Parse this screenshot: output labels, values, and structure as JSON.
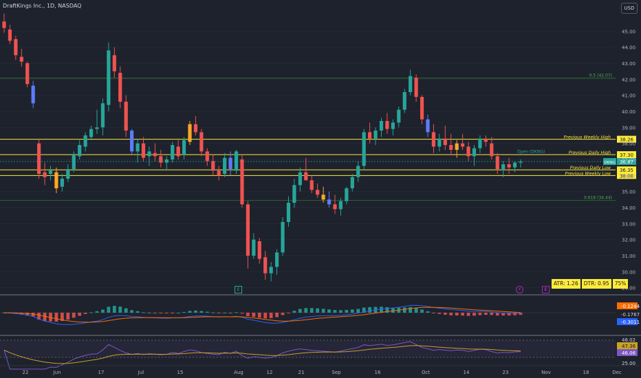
{
  "header": {
    "title": "DraftKings Inc., 1D, NASDAQ",
    "currency_button": "USD"
  },
  "colors": {
    "bg": "#1e222d",
    "up": "#26a69a",
    "down": "#ef5350",
    "level": "#ffeb3b",
    "fib": "#2e7d32",
    "macd_line": "#2962ff",
    "signal_line": "#ff6d00",
    "rsi": "#7e57c2",
    "rsi_ma": "#c9a227"
  },
  "chart_data": {
    "type": "candlestick",
    "price_axis": {
      "ticks": [
        "45.00",
        "44.00",
        "43.00",
        "42.00",
        "41.00",
        "40.00",
        "39.00",
        "38.00",
        "37.00",
        "36.00",
        "35.00",
        "34.00",
        "33.00",
        "32.00",
        "31.00",
        "30.00",
        "29.00"
      ],
      "ylim": [
        28.6,
        46.0
      ]
    },
    "time_axis": {
      "ticks": [
        "22",
        "Jun",
        "17",
        "Jul",
        "15",
        "Aug",
        "12",
        "21",
        "Sep",
        "16",
        "Oct",
        "14",
        "23",
        "Nov",
        "18",
        "Dec"
      ]
    },
    "levels": [
      {
        "label": "Previous Weekly High",
        "value": 38.26,
        "badge": "38.26"
      },
      {
        "label": "Previous Daily High",
        "value": 37.3,
        "badge": "37.30"
      },
      {
        "label": "Previous Daily Low",
        "value": 36.35,
        "badge": "36.35"
      },
      {
        "label": "Previous Weekly Low",
        "value": 36.0,
        "badge": "36.00"
      }
    ],
    "fib_levels": [
      {
        "label": "0.5 (42.07)",
        "value": 42.07
      },
      {
        "label": "0.618 (34.44)",
        "value": 34.44
      }
    ],
    "current_price": {
      "label": "DKNG",
      "value": 36.87
    },
    "open_marker": "Open (DKNG)",
    "stats": {
      "atr": "ATR: 1.26",
      "dtr": "DTR: 0.95",
      "pct": "75%"
    },
    "candles": [
      [
        45.6,
        46.1,
        44.9,
        45.2
      ],
      [
        45.1,
        45.4,
        44.2,
        44.4
      ],
      [
        44.5,
        44.7,
        43.2,
        43.5
      ],
      [
        43.4,
        43.9,
        42.8,
        43.1
      ],
      [
        43.0,
        43.1,
        41.5,
        41.7
      ],
      [
        41.6,
        41.9,
        40.2,
        40.5
      ],
      [
        38.0,
        38.3,
        35.8,
        36.1
      ],
      [
        36.2,
        36.8,
        35.4,
        35.9
      ],
      [
        36.1,
        36.6,
        35.7,
        36.3
      ],
      [
        36.2,
        36.5,
        34.9,
        35.2
      ],
      [
        35.3,
        36.1,
        35.0,
        35.8
      ],
      [
        35.8,
        36.7,
        35.6,
        36.4
      ],
      [
        36.4,
        37.5,
        36.2,
        37.3
      ],
      [
        37.2,
        38.2,
        37.0,
        37.9
      ],
      [
        37.8,
        38.7,
        37.5,
        38.5
      ],
      [
        38.4,
        39.1,
        38.2,
        38.9
      ],
      [
        38.9,
        40.1,
        38.6,
        39.0
      ],
      [
        39.0,
        40.8,
        38.5,
        40.5
      ],
      [
        40.4,
        44.3,
        40.0,
        43.8
      ],
      [
        43.5,
        44.0,
        42.1,
        42.5
      ],
      [
        42.4,
        42.8,
        40.2,
        40.6
      ],
      [
        40.6,
        41.0,
        38.4,
        38.8
      ],
      [
        38.8,
        38.9,
        37.3,
        37.5
      ],
      [
        37.5,
        38.3,
        36.8,
        38.0
      ],
      [
        38.0,
        38.4,
        36.9,
        37.1
      ],
      [
        37.2,
        37.8,
        36.6,
        37.5
      ],
      [
        37.4,
        38.0,
        36.9,
        37.2
      ],
      [
        37.2,
        37.6,
        36.5,
        36.8
      ],
      [
        36.8,
        37.2,
        36.3,
        37.0
      ],
      [
        37.0,
        38.1,
        36.8,
        37.9
      ],
      [
        37.8,
        38.2,
        37.0,
        37.2
      ],
      [
        37.3,
        38.4,
        37.0,
        38.2
      ],
      [
        38.1,
        39.4,
        37.9,
        39.2
      ],
      [
        39.2,
        39.7,
        38.5,
        38.7
      ],
      [
        38.7,
        38.9,
        37.2,
        37.5
      ],
      [
        37.5,
        37.7,
        36.6,
        36.9
      ],
      [
        36.9,
        37.3,
        36.0,
        36.3
      ],
      [
        36.3,
        36.6,
        35.7,
        36.0
      ],
      [
        36.1,
        37.4,
        35.9,
        37.1
      ],
      [
        37.1,
        37.5,
        36.0,
        36.4
      ],
      [
        36.3,
        37.6,
        36.1,
        37.5
      ],
      [
        37.0,
        37.3,
        34.0,
        34.2
      ],
      [
        34.2,
        34.4,
        30.2,
        31.0
      ],
      [
        31.0,
        32.4,
        30.8,
        32.0
      ],
      [
        31.9,
        32.1,
        30.5,
        30.8
      ],
      [
        30.9,
        31.3,
        29.5,
        29.9
      ],
      [
        29.9,
        30.6,
        29.4,
        30.3
      ],
      [
        30.3,
        31.4,
        29.8,
        31.2
      ],
      [
        31.2,
        33.4,
        31.0,
        33.1
      ],
      [
        33.1,
        34.7,
        32.8,
        34.3
      ],
      [
        34.3,
        35.8,
        34.0,
        35.4
      ],
      [
        35.4,
        36.5,
        35.0,
        36.2
      ],
      [
        36.2,
        37.1,
        35.8,
        35.7
      ],
      [
        35.7,
        36.0,
        34.9,
        35.1
      ],
      [
        35.1,
        35.5,
        34.6,
        34.8
      ],
      [
        34.8,
        35.3,
        34.3,
        34.5
      ],
      [
        34.5,
        35.0,
        34.0,
        34.2
      ],
      [
        34.2,
        34.8,
        33.6,
        33.9
      ],
      [
        33.9,
        34.6,
        33.5,
        34.4
      ],
      [
        34.4,
        35.3,
        34.2,
        35.2
      ],
      [
        35.2,
        36.1,
        35.0,
        35.9
      ],
      [
        35.9,
        36.9,
        35.6,
        36.6
      ],
      [
        36.6,
        38.9,
        36.4,
        38.7
      ],
      [
        38.7,
        39.3,
        38.0,
        38.3
      ],
      [
        38.3,
        39.0,
        37.9,
        38.8
      ],
      [
        38.8,
        39.6,
        38.4,
        39.4
      ],
      [
        39.4,
        39.9,
        38.6,
        38.9
      ],
      [
        38.9,
        39.5,
        38.5,
        39.3
      ],
      [
        39.3,
        40.3,
        39.0,
        40.1
      ],
      [
        40.1,
        41.4,
        39.9,
        41.2
      ],
      [
        41.2,
        42.6,
        41.0,
        42.2
      ],
      [
        42.1,
        42.3,
        40.6,
        40.9
      ],
      [
        40.9,
        41.0,
        39.2,
        39.5
      ],
      [
        39.5,
        39.8,
        38.4,
        38.7
      ],
      [
        38.7,
        39.2,
        37.4,
        37.8
      ],
      [
        37.8,
        38.6,
        37.5,
        38.3
      ],
      [
        38.3,
        39.1,
        37.6,
        37.9
      ],
      [
        37.9,
        38.6,
        37.3,
        37.6
      ],
      [
        37.6,
        38.2,
        37.1,
        38.0
      ],
      [
        38.0,
        38.6,
        37.6,
        37.8
      ],
      [
        37.8,
        38.1,
        36.9,
        37.2
      ],
      [
        37.2,
        37.9,
        36.6,
        37.7
      ],
      [
        37.7,
        38.5,
        37.4,
        38.3
      ],
      [
        38.3,
        38.5,
        37.8,
        38.1
      ],
      [
        38.0,
        38.4,
        37.0,
        37.2
      ],
      [
        37.2,
        37.4,
        36.1,
        36.4
      ],
      [
        36.4,
        36.9,
        35.9,
        36.7
      ],
      [
        36.7,
        37.1,
        36.1,
        36.5
      ],
      [
        36.5,
        36.9,
        36.2,
        36.8
      ],
      [
        36.8,
        37.0,
        36.5,
        36.87
      ]
    ]
  },
  "macd": {
    "ticks": [
      "-0.1244",
      "-0.1767",
      "-0.3011"
    ]
  },
  "rsi": {
    "ticks": [
      "48.02",
      "47.36",
      "46.06",
      "25.00"
    ]
  }
}
